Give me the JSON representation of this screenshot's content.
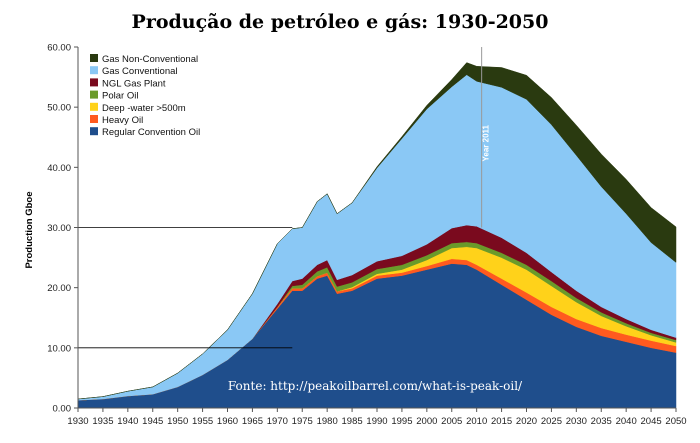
{
  "chart_data": {
    "type": "area",
    "stacked": true,
    "title": "Produção de petróleo e gás: 1930-2050",
    "xlabel": "",
    "ylabel": "Production Gboe",
    "xlim": [
      1930,
      2050
    ],
    "ylim": [
      0,
      60
    ],
    "x_ticks": [
      "1930",
      "1935",
      "1940",
      "1945",
      "1950",
      "1955",
      "1960",
      "1965",
      "1970",
      "1975",
      "1980",
      "1985",
      "1990",
      "1995",
      "2000",
      "2005",
      "2010",
      "2015",
      "2020",
      "2025",
      "2030",
      "2035",
      "2040",
      "2045",
      "2050"
    ],
    "y_ticks": [
      "0.00",
      "10.00",
      "20.00",
      "30.00",
      "40.00",
      "50.00",
      "60.00"
    ],
    "reference_lines": [
      10,
      30
    ],
    "legend_position": "top-left",
    "marker": {
      "x": 2011,
      "label": "Year 2011"
    },
    "source": "Fonte: http://peakoilbarrel.com/what-is-peak-oil/",
    "x": [
      1930,
      1935,
      1940,
      1945,
      1950,
      1955,
      1960,
      1965,
      1970,
      1973,
      1975,
      1978,
      1980,
      1982,
      1985,
      1990,
      1995,
      2000,
      2005,
      2008,
      2010,
      2015,
      2020,
      2025,
      2030,
      2035,
      2040,
      2045,
      2050
    ],
    "series": [
      {
        "name": "Regular Convention Oil",
        "color": "#1f4e8c",
        "values": [
          1.3,
          1.5,
          2.0,
          2.3,
          3.5,
          5.5,
          8.0,
          11.5,
          16.5,
          19.5,
          19.5,
          21.5,
          22.0,
          19.0,
          19.5,
          21.5,
          22.0,
          23.0,
          24.0,
          23.8,
          23.0,
          20.5,
          18.0,
          15.5,
          13.5,
          12.0,
          11.0,
          10.0,
          9.2
        ]
      },
      {
        "name": "Heavy Oil",
        "color": "#ff5a1f",
        "values": [
          0,
          0,
          0,
          0,
          0,
          0,
          0,
          0,
          0.3,
          0.4,
          0.4,
          0.4,
          0.5,
          0.4,
          0.4,
          0.5,
          0.5,
          0.6,
          0.8,
          0.8,
          0.8,
          1.0,
          1.2,
          1.3,
          1.3,
          1.3,
          1.2,
          1.2,
          1.1
        ]
      },
      {
        "name": "Deep -water >500m",
        "color": "#ffd21a",
        "values": [
          0,
          0,
          0,
          0,
          0,
          0,
          0,
          0,
          0,
          0,
          0,
          0,
          0,
          0,
          0.2,
          0.3,
          0.5,
          1.0,
          1.8,
          2.2,
          2.8,
          3.5,
          3.8,
          3.5,
          2.8,
          2.0,
          1.4,
          0.9,
          0.6
        ]
      },
      {
        "name": "Polar Oil",
        "color": "#6a9a2a",
        "values": [
          0,
          0,
          0,
          0,
          0,
          0,
          0,
          0,
          0,
          0.4,
          0.6,
          0.8,
          0.9,
          0.8,
          0.8,
          0.8,
          0.8,
          0.8,
          0.8,
          0.8,
          0.8,
          0.8,
          0.8,
          0.8,
          0.7,
          0.6,
          0.5,
          0.4,
          0.4
        ]
      },
      {
        "name": "NGL Gas Plant",
        "color": "#7a0a1e",
        "values": [
          0,
          0,
          0,
          0,
          0,
          0,
          0,
          0,
          0.5,
          0.8,
          1.0,
          1.1,
          1.2,
          1.1,
          1.2,
          1.3,
          1.5,
          1.8,
          2.5,
          2.8,
          2.8,
          2.5,
          2.0,
          1.5,
          1.2,
          0.9,
          0.7,
          0.5,
          0.4
        ]
      },
      {
        "name": "Gas Conventional",
        "color": "#8ac8f5",
        "values": [
          0.2,
          0.4,
          0.8,
          1.2,
          2.3,
          3.5,
          5.0,
          7.5,
          10.0,
          8.7,
          8.5,
          10.5,
          11.0,
          11.0,
          12.0,
          15.5,
          19.5,
          22.5,
          23.5,
          25.0,
          24.1,
          25.0,
          25.5,
          24.5,
          22.5,
          20.0,
          17.5,
          14.5,
          12.5
        ]
      },
      {
        "name": "Gas Non-Conventional",
        "color": "#2a3a10",
        "values": [
          0,
          0,
          0,
          0,
          0,
          0,
          0,
          0,
          0,
          0,
          0,
          0,
          0,
          0,
          0,
          0.2,
          0.3,
          0.6,
          1.2,
          2.0,
          2.5,
          3.3,
          4.0,
          4.5,
          5.0,
          5.4,
          5.7,
          5.8,
          5.9
        ]
      }
    ]
  }
}
